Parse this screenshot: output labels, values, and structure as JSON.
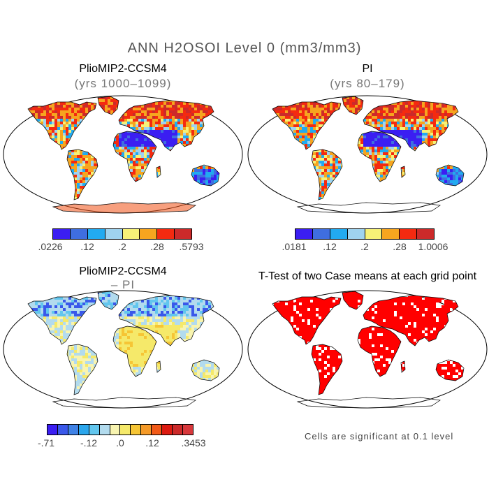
{
  "main_title": "ANN H2OSOI Level 0 (mm3/mm3)",
  "panels": [
    {
      "title": "PlioMIP2-CCSM4",
      "subtitle": "(yrs 1000–1099)",
      "fill": "wet"
    },
    {
      "title": "PI",
      "subtitle": "(yrs 80–179)",
      "fill": "wet"
    },
    {
      "title": "PlioMIP2-CCSM4",
      "subtitle": "– PI",
      "fill": "diff"
    },
    {
      "title": "T-Test of two Case means at each grid point",
      "subtitle": "",
      "fill": "sig"
    }
  ],
  "colorbars": [
    {
      "colors": [
        "#3b1ef2",
        "#3f6ee0",
        "#22aaf0",
        "#9fd3ef",
        "#f6f177",
        "#f6a51f",
        "#f42a10",
        "#cc2a2a"
      ],
      "ticks": [
        ".0226",
        ".12",
        ".2",
        ".28",
        ".5793"
      ]
    },
    {
      "colors": [
        "#3b1ef2",
        "#3f6ee0",
        "#22aaf0",
        "#9fd3ef",
        "#f6f177",
        "#f6a51f",
        "#f42a10",
        "#cc2a2a"
      ],
      "ticks": [
        ".0181",
        ".12",
        ".2",
        ".28",
        "1.0006"
      ]
    },
    {
      "colors": [
        "#3b1ef2",
        "#3a58ea",
        "#3f82e6",
        "#2ba6ec",
        "#62c6ee",
        "#b2dbee",
        "#f8f4b0",
        "#f5e96a",
        "#f6c535",
        "#f59a28",
        "#f25a18",
        "#dc1a10",
        "#cc2a2a",
        "#d8383c"
      ],
      "ticks": [
        "-.71",
        "-.12",
        ".0",
        ".12",
        ".3453"
      ]
    }
  ],
  "note": "Cells are significant at 0.1 level",
  "colors": {
    "significant": "#ff0000",
    "ocean": "#ffffff",
    "coast": "#000000"
  }
}
